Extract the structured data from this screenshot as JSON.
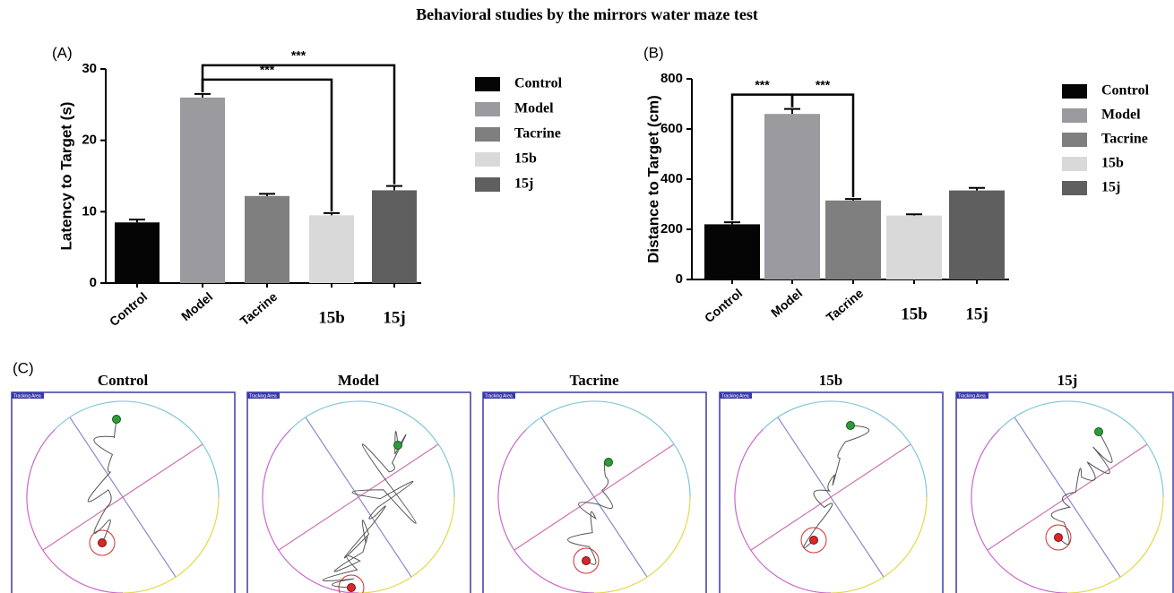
{
  "title": "Behavioral studies by the mirrors water maze test",
  "chart_data": [
    {
      "type": "bar",
      "panel_label": "(A)",
      "ylabel": "Latency to Target (s)",
      "categories": [
        "Control",
        "Model",
        "Tacrine",
        "15b",
        "15j"
      ],
      "values": [
        8.5,
        26,
        12.2,
        9.5,
        13
      ],
      "errors": [
        0.4,
        0.5,
        0.3,
        0.3,
        0.6
      ],
      "colors": [
        "#050505",
        "#9a9a9f",
        "#7f7f7f",
        "#d9d9d9",
        "#5f5f5f"
      ],
      "ylim": [
        0,
        30
      ],
      "yticks": [
        0,
        10,
        20,
        30
      ],
      "annotations": [
        {
          "between": [
            1,
            3
          ],
          "label": "***"
        },
        {
          "between": [
            1,
            4
          ],
          "label": "***"
        }
      ]
    },
    {
      "type": "bar",
      "panel_label": "(B)",
      "ylabel": "Distance to Target (cm)",
      "categories": [
        "Control",
        "Model",
        "Tacrine",
        "15b",
        "15j"
      ],
      "values": [
        220,
        660,
        315,
        255,
        355
      ],
      "errors": [
        8,
        20,
        6,
        5,
        10
      ],
      "colors": [
        "#050505",
        "#9a9a9f",
        "#7f7f7f",
        "#d9d9d9",
        "#5f5f5f"
      ],
      "ylim": [
        0,
        800
      ],
      "yticks": [
        0,
        200,
        400,
        600,
        800
      ],
      "annotations": [
        {
          "between": [
            0,
            1
          ],
          "label": "***"
        },
        {
          "between": [
            1,
            2
          ],
          "label": "***"
        }
      ]
    }
  ],
  "panel_c": {
    "label": "(C)",
    "tracking_label": "Tracking Area",
    "panels": [
      {
        "title": "Control"
      },
      {
        "title": "Model"
      },
      {
        "title": "Tacrine"
      },
      {
        "title": "15b"
      },
      {
        "title": "15j"
      }
    ]
  }
}
